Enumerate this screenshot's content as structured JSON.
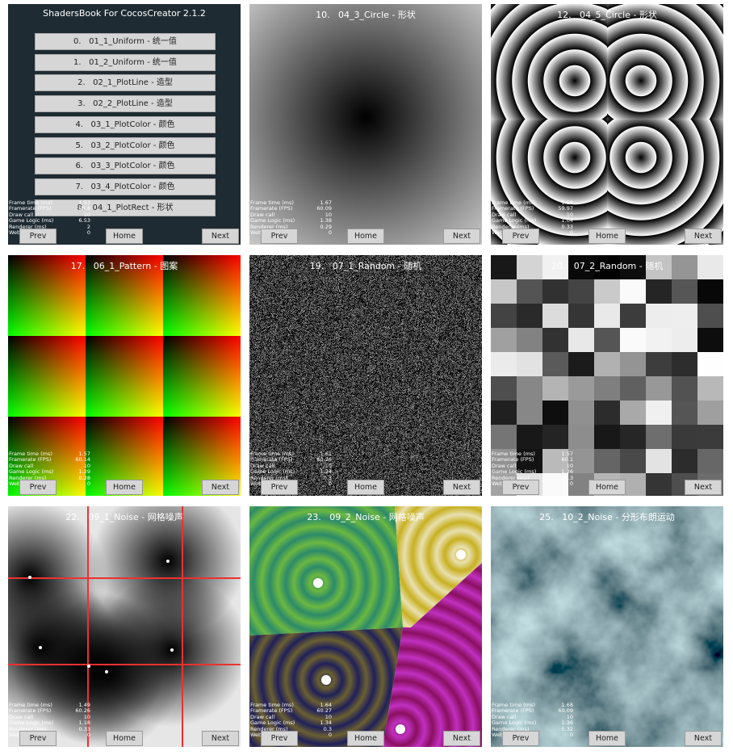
{
  "stats_labels": [
    "Frame time (ms)",
    "Framerate (FPS)",
    "Draw call",
    "Game Logic (ms)",
    "Renderer (ms)",
    "WebGL"
  ],
  "buttons": [
    "Prev",
    "Home",
    "Next"
  ],
  "panels": [
    {
      "title": "ShadersBook For CocosCreator 2.1.2",
      "menu": [
        "0.   01_1_Uniform - 统一值",
        "1.   01_2_Uniform - 统一值",
        "2.   02_1_PlotLine - 造型",
        "3.   02_2_PlotLine - 造型",
        "4.   03_1_PlotColor - 颜色",
        "5.   03_2_PlotColor - 颜色",
        "6.   03_3_PlotColor - 颜色",
        "7.   03_4_PlotColor - 颜色",
        "8.   04_1_PlotRect - 形状"
      ],
      "stats": [
        "1.53",
        "59.8",
        "10",
        "6.53",
        "2",
        "0"
      ]
    },
    {
      "title": "10.   04_3_Circle - 形状",
      "stats": [
        "1.67",
        "60.09",
        "10",
        "1.38",
        "0.29",
        "0"
      ]
    },
    {
      "title": "12.   04_5_Circle - 形状",
      "stats": [
        "1.58",
        "59.97",
        "10",
        "1.04",
        "0.33",
        "0"
      ]
    },
    {
      "title": "17.   06_1_Pattern - 图案",
      "stats": [
        "1.57",
        "60.14",
        "10",
        "1.29",
        "0.28",
        "0"
      ]
    },
    {
      "title": "19.   07_1_Random - 随机",
      "stats": [
        "1.61",
        "60.26",
        "10",
        "1.24",
        "0.3",
        "0"
      ]
    },
    {
      "title": "20.   07_2_Random - 随机",
      "stats": [
        "1.57",
        "60.1",
        "10",
        "1.26",
        "0.3",
        "0"
      ]
    },
    {
      "title": "22.   09_1_Noise - 网格噪声",
      "stats": [
        "1.49",
        "60.26",
        "10",
        "1.18",
        "0.33",
        "0"
      ]
    },
    {
      "title": "23.   09_2_Noise - 网格噪声",
      "stats": [
        "1.64",
        "60.27",
        "10",
        "1.34",
        "0.3",
        "0"
      ]
    },
    {
      "title": "25.   10_2_Noise - 分形布朗运动",
      "stats": [
        "1.68",
        "60.09",
        "10",
        "1.36",
        "0.32",
        "0"
      ]
    }
  ]
}
